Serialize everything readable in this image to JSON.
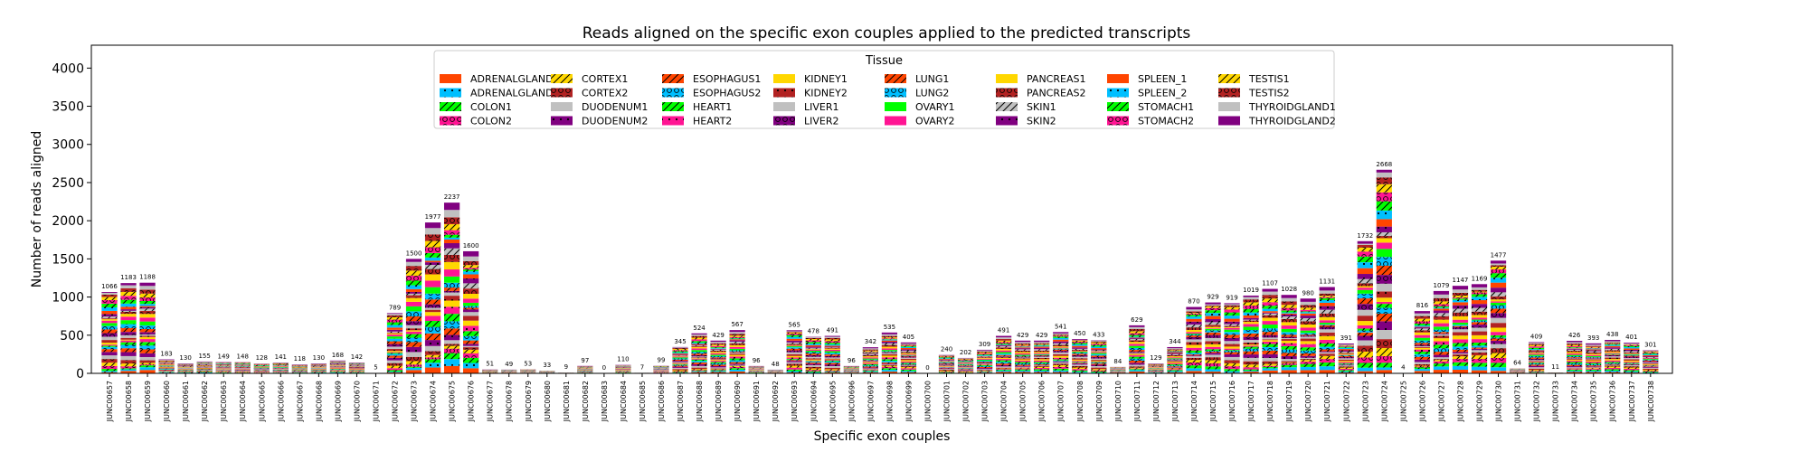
{
  "chart_data": {
    "type": "bar",
    "stacked": true,
    "title": "Reads aligned on the specific exon couples applied to the predicted transcripts",
    "xlabel": "Specific exon couples",
    "ylabel": "Number of reads aligned",
    "ylim": [
      0,
      4300
    ],
    "yticks": [
      0,
      500,
      1000,
      1500,
      2000,
      2500,
      3000,
      3500,
      4000
    ],
    "legend": {
      "title": "Tissue",
      "placement": "top-center",
      "entries": [
        {
          "name": "ADRENALGLAND1",
          "color": "#ff4500",
          "pattern": "none"
        },
        {
          "name": "ADRENALGLAND2",
          "color": "#00bfff",
          "pattern": "dots"
        },
        {
          "name": "COLON1",
          "color": "#00ff00",
          "pattern": "slash"
        },
        {
          "name": "COLON2",
          "color": "#ff1493",
          "pattern": "circles"
        },
        {
          "name": "CORTEX1",
          "color": "#ffd700",
          "pattern": "slash"
        },
        {
          "name": "CORTEX2",
          "color": "#b22222",
          "pattern": "circles"
        },
        {
          "name": "DUODENUM1",
          "color": "#c0c0c0",
          "pattern": "none"
        },
        {
          "name": "DUODENUM2",
          "color": "#800080",
          "pattern": "dots"
        },
        {
          "name": "ESOPHAGUS1",
          "color": "#ff4500",
          "pattern": "slash"
        },
        {
          "name": "ESOPHAGUS2",
          "color": "#00bfff",
          "pattern": "circles"
        },
        {
          "name": "HEART1",
          "color": "#00ff00",
          "pattern": "slash"
        },
        {
          "name": "HEART2",
          "color": "#ff1493",
          "pattern": "dots"
        },
        {
          "name": "KIDNEY1",
          "color": "#ffd700",
          "pattern": "none"
        },
        {
          "name": "KIDNEY2",
          "color": "#b22222",
          "pattern": "dots"
        },
        {
          "name": "LIVER1",
          "color": "#c0c0c0",
          "pattern": "none"
        },
        {
          "name": "LIVER2",
          "color": "#800080",
          "pattern": "circles"
        },
        {
          "name": "LUNG1",
          "color": "#ff4500",
          "pattern": "slash"
        },
        {
          "name": "LUNG2",
          "color": "#00bfff",
          "pattern": "circles"
        },
        {
          "name": "OVARY1",
          "color": "#00ff00",
          "pattern": "none"
        },
        {
          "name": "OVARY2",
          "color": "#ff1493",
          "pattern": "none"
        },
        {
          "name": "PANCREAS1",
          "color": "#ffd700",
          "pattern": "none"
        },
        {
          "name": "PANCREAS2",
          "color": "#b22222",
          "pattern": "circles"
        },
        {
          "name": "SKIN1",
          "color": "#c0c0c0",
          "pattern": "slash"
        },
        {
          "name": "SKIN2",
          "color": "#800080",
          "pattern": "dots"
        },
        {
          "name": "SPLEEN_1",
          "color": "#ff4500",
          "pattern": "none"
        },
        {
          "name": "SPLEEN_2",
          "color": "#00bfff",
          "pattern": "dots"
        },
        {
          "name": "STOMACH1",
          "color": "#00ff00",
          "pattern": "slash"
        },
        {
          "name": "STOMACH2",
          "color": "#ff1493",
          "pattern": "circles"
        },
        {
          "name": "TESTIS1",
          "color": "#ffd700",
          "pattern": "slash"
        },
        {
          "name": "TESTIS2",
          "color": "#b22222",
          "pattern": "circles"
        },
        {
          "name": "THYROIDGLAND1",
          "color": "#c0c0c0",
          "pattern": "none"
        },
        {
          "name": "THYROIDGLAND2",
          "color": "#800080",
          "pattern": "none"
        }
      ]
    },
    "categories": [
      "JUNC00657",
      "JUNC00658",
      "JUNC00659",
      "JUNC00660",
      "JUNC00661",
      "JUNC00662",
      "JUNC00663",
      "JUNC00664",
      "JUNC00665",
      "JUNC00666",
      "JUNC00667",
      "JUNC00668",
      "JUNC00669",
      "JUNC00670",
      "JUNC00671",
      "JUNC00672",
      "JUNC00673",
      "JUNC00674",
      "JUNC00675",
      "JUNC00676",
      "JUNC00677",
      "JUNC00678",
      "JUNC00679",
      "JUNC00680",
      "JUNC00681",
      "JUNC00682",
      "JUNC00683",
      "JUNC00684",
      "JUNC00685",
      "JUNC00686",
      "JUNC00687",
      "JUNC00688",
      "JUNC00689",
      "JUNC00690",
      "JUNC00691",
      "JUNC00692",
      "JUNC00693",
      "JUNC00694",
      "JUNC00695",
      "JUNC00696",
      "JUNC00697",
      "JUNC00698",
      "JUNC00699",
      "JUNC00700",
      "JUNC00701",
      "JUNC00702",
      "JUNC00703",
      "JUNC00704",
      "JUNC00705",
      "JUNC00706",
      "JUNC00707",
      "JUNC00708",
      "JUNC00709",
      "JUNC00710",
      "JUNC00711",
      "JUNC00712",
      "JUNC00713",
      "JUNC00714",
      "JUNC00715",
      "JUNC00716",
      "JUNC00717",
      "JUNC00718",
      "JUNC00719",
      "JUNC00720",
      "JUNC00721",
      "JUNC00722",
      "JUNC00723",
      "JUNC00724",
      "JUNC00725",
      "JUNC00726",
      "JUNC00727",
      "JUNC00728",
      "JUNC00729",
      "JUNC00730",
      "JUNC00731",
      "JUNC00732",
      "JUNC00733",
      "JUNC00734",
      "JUNC00735",
      "JUNC00736",
      "JUNC00737",
      "JUNC00738"
    ],
    "totals": [
      1066,
      1183,
      1188,
      183,
      130,
      155,
      149,
      148,
      128,
      141,
      118,
      130,
      168,
      142,
      5,
      789,
      1500,
      1977,
      2237,
      1600,
      51,
      49,
      53,
      33,
      9,
      97,
      0,
      110,
      7,
      99,
      345,
      524,
      429,
      567,
      96,
      48,
      565,
      478,
      491,
      96,
      342,
      535,
      405,
      0,
      240,
      202,
      309,
      491,
      429,
      429,
      541,
      450,
      433,
      84,
      629,
      129,
      344,
      870,
      929,
      919,
      1019,
      1107,
      1028,
      980,
      1131,
      391,
      1732,
      2668,
      4,
      816,
      1079,
      1147,
      1169,
      1477,
      64,
      409,
      11,
      426,
      393,
      438,
      401,
      301
    ]
  }
}
